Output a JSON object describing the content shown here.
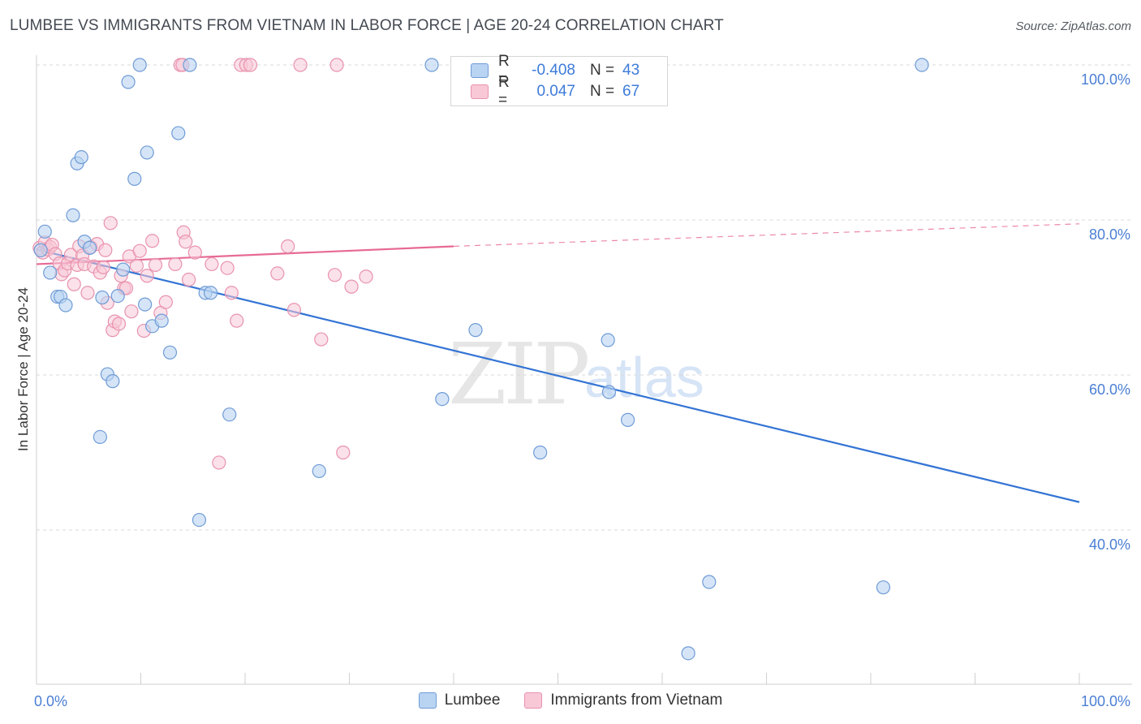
{
  "title": "LUMBEE VS IMMIGRANTS FROM VIETNAM IN LABOR FORCE | AGE 20-24 CORRELATION CHART",
  "source": "Source: ZipAtlas.com",
  "watermark": {
    "zip": "ZIP",
    "atlas": "atlas"
  },
  "legend": {
    "rows": [
      {
        "r_label": "R =",
        "r_value": "-0.408",
        "n_label": "N =",
        "n_value": "43"
      },
      {
        "r_label": "R =",
        "r_value": "0.047",
        "n_label": "N =",
        "n_value": "67"
      }
    ]
  },
  "bottom_legend": {
    "series1": "Lumbee",
    "series2": "Immigrants from Vietnam"
  },
  "chart_data": {
    "type": "scatter",
    "title": "LUMBEE VS IMMIGRANTS FROM VIETNAM IN LABOR FORCE | AGE 20-24 CORRELATION CHART",
    "xlabel": "",
    "ylabel": "In Labor Force | Age 20-24",
    "xlim": [
      0,
      100
    ],
    "ylim": [
      20,
      102
    ],
    "x_tick_labels": [
      "0.0%",
      "100.0%"
    ],
    "y_ticks": [
      {
        "value": 100,
        "label": "100.0%"
      },
      {
        "value": 80,
        "label": "80.0%"
      },
      {
        "value": 60,
        "label": "60.0%"
      },
      {
        "value": 40,
        "label": "40.0%"
      }
    ],
    "colors": {
      "lumbee_fill": "#b9d3f2",
      "lumbee_stroke": "#6f9bd6",
      "lumbee_line": "#3374d4",
      "vietnam_fill": "#f8c8d7",
      "vietnam_stroke": "#e892ae",
      "vietnam_line": "#e76a94",
      "tick_color": "#4a7fd4"
    },
    "series": [
      {
        "name": "Lumbee",
        "trend": {
          "x0": 0,
          "y0": 76.2,
          "x1": 100,
          "y1": 43.6
        },
        "points": [
          [
            0.4,
            76.1
          ],
          [
            0.8,
            78.5
          ],
          [
            1.3,
            73.2
          ],
          [
            2.0,
            70.1
          ],
          [
            2.3,
            70.1
          ],
          [
            2.8,
            69.0
          ],
          [
            3.5,
            80.6
          ],
          [
            3.9,
            87.3
          ],
          [
            4.3,
            88.1
          ],
          [
            4.6,
            77.2
          ],
          [
            5.1,
            76.4
          ],
          [
            6.1,
            52.0
          ],
          [
            6.3,
            70.0
          ],
          [
            6.8,
            60.1
          ],
          [
            7.3,
            59.2
          ],
          [
            7.8,
            70.2
          ],
          [
            8.3,
            73.6
          ],
          [
            8.8,
            97.8
          ],
          [
            9.4,
            85.3
          ],
          [
            9.9,
            100.0
          ],
          [
            10.4,
            69.1
          ],
          [
            10.6,
            88.7
          ],
          [
            11.1,
            66.3
          ],
          [
            12.0,
            67.0
          ],
          [
            12.8,
            62.9
          ],
          [
            13.6,
            91.2
          ],
          [
            14.7,
            100.0
          ],
          [
            15.6,
            41.3
          ],
          [
            16.2,
            70.6
          ],
          [
            16.7,
            70.6
          ],
          [
            18.5,
            54.9
          ],
          [
            27.1,
            47.6
          ],
          [
            37.9,
            100.0
          ],
          [
            38.9,
            56.9
          ],
          [
            42.1,
            65.8
          ],
          [
            48.3,
            50.0
          ],
          [
            54.8,
            64.5
          ],
          [
            54.9,
            57.8
          ],
          [
            56.7,
            54.2
          ],
          [
            62.5,
            24.1
          ],
          [
            64.5,
            33.3
          ],
          [
            81.2,
            32.6
          ],
          [
            84.9,
            100.0
          ]
        ]
      },
      {
        "name": "Immigrants from Vietnam",
        "trend": {
          "x0": 0,
          "y0": 74.3,
          "x1": 40,
          "y1": 76.6,
          "dash_x1": 100,
          "dash_y1": 79.5
        },
        "points": [
          [
            0.3,
            76.4
          ],
          [
            0.6,
            75.8
          ],
          [
            0.8,
            77.1
          ],
          [
            1.1,
            76.2
          ],
          [
            1.3,
            76.5
          ],
          [
            1.5,
            76.8
          ],
          [
            1.8,
            75.6
          ],
          [
            2.2,
            74.4
          ],
          [
            2.4,
            73.0
          ],
          [
            2.7,
            73.5
          ],
          [
            3.0,
            74.4
          ],
          [
            3.3,
            75.5
          ],
          [
            3.6,
            71.7
          ],
          [
            3.9,
            74.2
          ],
          [
            4.1,
            76.6
          ],
          [
            4.4,
            75.4
          ],
          [
            4.6,
            74.3
          ],
          [
            4.9,
            70.6
          ],
          [
            5.2,
            76.5
          ],
          [
            5.5,
            74.0
          ],
          [
            5.8,
            76.9
          ],
          [
            6.1,
            73.2
          ],
          [
            6.4,
            73.9
          ],
          [
            6.6,
            76.1
          ],
          [
            6.8,
            69.3
          ],
          [
            7.1,
            79.6
          ],
          [
            7.3,
            65.8
          ],
          [
            7.5,
            66.9
          ],
          [
            7.9,
            66.6
          ],
          [
            8.1,
            72.8
          ],
          [
            8.4,
            71.2
          ],
          [
            8.6,
            71.2
          ],
          [
            8.9,
            75.3
          ],
          [
            9.1,
            68.2
          ],
          [
            9.6,
            74.1
          ],
          [
            9.9,
            76.0
          ],
          [
            10.3,
            65.7
          ],
          [
            10.6,
            72.8
          ],
          [
            11.1,
            77.3
          ],
          [
            11.4,
            74.2
          ],
          [
            11.9,
            68.0
          ],
          [
            12.4,
            69.4
          ],
          [
            13.3,
            74.3
          ],
          [
            13.8,
            100.0
          ],
          [
            14.0,
            100.0
          ],
          [
            14.1,
            78.4
          ],
          [
            14.3,
            77.2
          ],
          [
            14.6,
            72.3
          ],
          [
            15.2,
            75.8
          ],
          [
            16.8,
            74.3
          ],
          [
            17.5,
            48.7
          ],
          [
            18.3,
            73.8
          ],
          [
            18.7,
            70.6
          ],
          [
            19.2,
            67.0
          ],
          [
            19.6,
            100.0
          ],
          [
            20.1,
            100.0
          ],
          [
            20.5,
            100.0
          ],
          [
            23.1,
            73.1
          ],
          [
            24.1,
            76.6
          ],
          [
            24.7,
            68.4
          ],
          [
            25.3,
            100.0
          ],
          [
            27.3,
            64.6
          ],
          [
            28.8,
            100.0
          ],
          [
            28.6,
            72.9
          ],
          [
            29.4,
            50.0
          ],
          [
            30.2,
            71.4
          ],
          [
            31.6,
            72.7
          ]
        ]
      }
    ]
  }
}
